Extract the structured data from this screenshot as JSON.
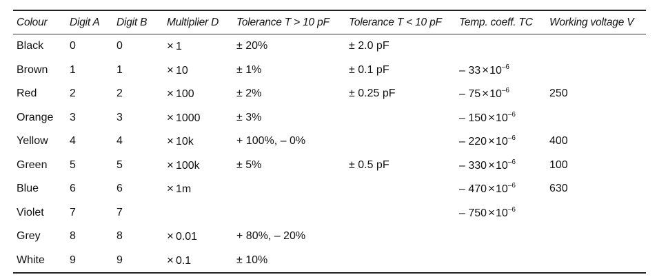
{
  "table": {
    "headers": [
      "Colour",
      "Digit A",
      "Digit B",
      "Multiplier D",
      "Tolerance T > 10 pF",
      "Tolerance T < 10 pF",
      "Temp. coeff. TC",
      "Working voltage V"
    ],
    "rows": [
      {
        "colour": "Black",
        "digit_a": "0",
        "digit_b": "0",
        "multiplier": "1",
        "tol_gt10": "± 20%",
        "tol_lt10": "± 2.0 pF",
        "tc_coeff": "",
        "tc_exp": "",
        "voltage": ""
      },
      {
        "colour": "Brown",
        "digit_a": "1",
        "digit_b": "1",
        "multiplier": "10",
        "tol_gt10": "± 1%",
        "tol_lt10": "± 0.1 pF",
        "tc_coeff": "– 33",
        "tc_exp": "–6",
        "voltage": ""
      },
      {
        "colour": "Red",
        "digit_a": "2",
        "digit_b": "2",
        "multiplier": "100",
        "tol_gt10": "± 2%",
        "tol_lt10": "± 0.25 pF",
        "tc_coeff": "– 75",
        "tc_exp": "–6",
        "voltage": "250"
      },
      {
        "colour": "Orange",
        "digit_a": "3",
        "digit_b": "3",
        "multiplier": "1000",
        "tol_gt10": "± 3%",
        "tol_lt10": "",
        "tc_coeff": "– 150",
        "tc_exp": "–6",
        "voltage": ""
      },
      {
        "colour": "Yellow",
        "digit_a": "4",
        "digit_b": "4",
        "multiplier": "10k",
        "tol_gt10": "+ 100%, – 0%",
        "tol_lt10": "",
        "tc_coeff": "– 220",
        "tc_exp": "–6",
        "voltage": "400"
      },
      {
        "colour": "Green",
        "digit_a": "5",
        "digit_b": "5",
        "multiplier": "100k",
        "tol_gt10": "± 5%",
        "tol_lt10": "± 0.5 pF",
        "tc_coeff": "– 330",
        "tc_exp": "–6",
        "voltage": "100"
      },
      {
        "colour": "Blue",
        "digit_a": "6",
        "digit_b": "6",
        "multiplier": "1m",
        "tol_gt10": "",
        "tol_lt10": "",
        "tc_coeff": "– 470",
        "tc_exp": "–6",
        "voltage": "630"
      },
      {
        "colour": "Violet",
        "digit_a": "7",
        "digit_b": "7",
        "multiplier": "",
        "tol_gt10": "",
        "tol_lt10": "",
        "tc_coeff": "– 750",
        "tc_exp": "–6",
        "voltage": ""
      },
      {
        "colour": "Grey",
        "digit_a": "8",
        "digit_b": "8",
        "multiplier": "0.01",
        "tol_gt10": "+ 80%, – 20%",
        "tol_lt10": "",
        "tc_coeff": "",
        "tc_exp": "",
        "voltage": ""
      },
      {
        "colour": "White",
        "digit_a": "9",
        "digit_b": "9",
        "multiplier": "0.1",
        "tol_gt10": "± 10%",
        "tol_lt10": "",
        "tc_coeff": "",
        "tc_exp": "",
        "voltage": ""
      }
    ],
    "symbols": {
      "times": "×",
      "tc_base": "10"
    }
  }
}
